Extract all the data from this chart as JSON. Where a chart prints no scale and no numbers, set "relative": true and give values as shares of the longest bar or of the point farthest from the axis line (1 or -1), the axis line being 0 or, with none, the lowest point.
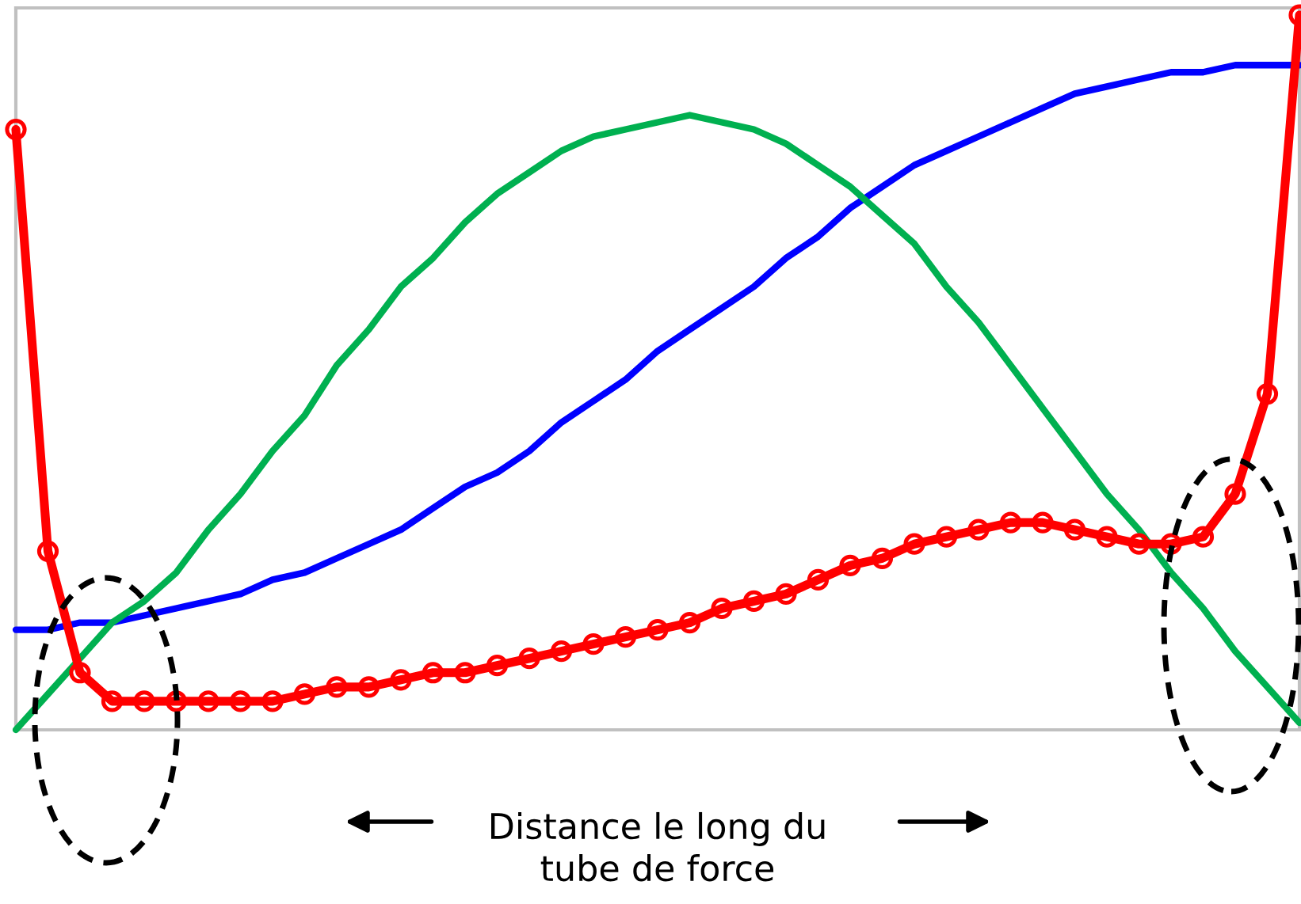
{
  "chart_data": {
    "type": "line",
    "relative": true,
    "xlabel": "Distance le long du\ntube de force",
    "categories": [
      null,
      null,
      null,
      null,
      null,
      null,
      null,
      null,
      null,
      null,
      null,
      null,
      null,
      null,
      null,
      null,
      null,
      null,
      null,
      null,
      null,
      null,
      null,
      null,
      null,
      null,
      null,
      null,
      null,
      null,
      null,
      null,
      null,
      null,
      null,
      null,
      null,
      null,
      null,
      null,
      null
    ],
    "series": [
      {
        "color": "#0000ff",
        "values": [
          0.14,
          0.14,
          0.15,
          0.15,
          0.16,
          0.17,
          0.18,
          0.19,
          0.21,
          0.22,
          0.24,
          0.26,
          0.28,
          0.31,
          0.34,
          0.36,
          0.39,
          0.43,
          0.46,
          0.49,
          0.53,
          0.56,
          0.59,
          0.62,
          0.66,
          0.69,
          0.73,
          0.76,
          0.79,
          0.81,
          0.83,
          0.85,
          0.87,
          0.89,
          0.9,
          0.91,
          0.92,
          0.92,
          0.93,
          0.93,
          0.93
        ]
      },
      {
        "color": "#00b050",
        "values": [
          0,
          0.05,
          0.1,
          0.15,
          0.18,
          0.22,
          0.28,
          0.33,
          0.39,
          0.44,
          0.51,
          0.56,
          0.62,
          0.66,
          0.71,
          0.75,
          0.78,
          0.81,
          0.83,
          0.84,
          0.85,
          0.86,
          0.85,
          0.84,
          0.82,
          0.79,
          0.76,
          0.72,
          0.68,
          0.62,
          0.57,
          0.51,
          0.45,
          0.39,
          0.33,
          0.28,
          0.22,
          0.17,
          0.11,
          0.06,
          0.01
        ]
      },
      {
        "color": "#ff0000",
        "marker": "circle",
        "values": [
          0.84,
          0.25,
          0.08,
          0.04,
          0.04,
          0.04,
          0.04,
          0.04,
          0.04,
          0.05,
          0.06,
          0.06,
          0.07,
          0.08,
          0.08,
          0.09,
          0.1,
          0.11,
          0.12,
          0.13,
          0.14,
          0.15,
          0.17,
          0.18,
          0.19,
          0.21,
          0.23,
          0.24,
          0.26,
          0.27,
          0.28,
          0.29,
          0.29,
          0.28,
          0.27,
          0.26,
          0.26,
          0.27,
          0.33,
          0.47,
          1
        ]
      }
    ],
    "grid": false,
    "legend": false
  }
}
